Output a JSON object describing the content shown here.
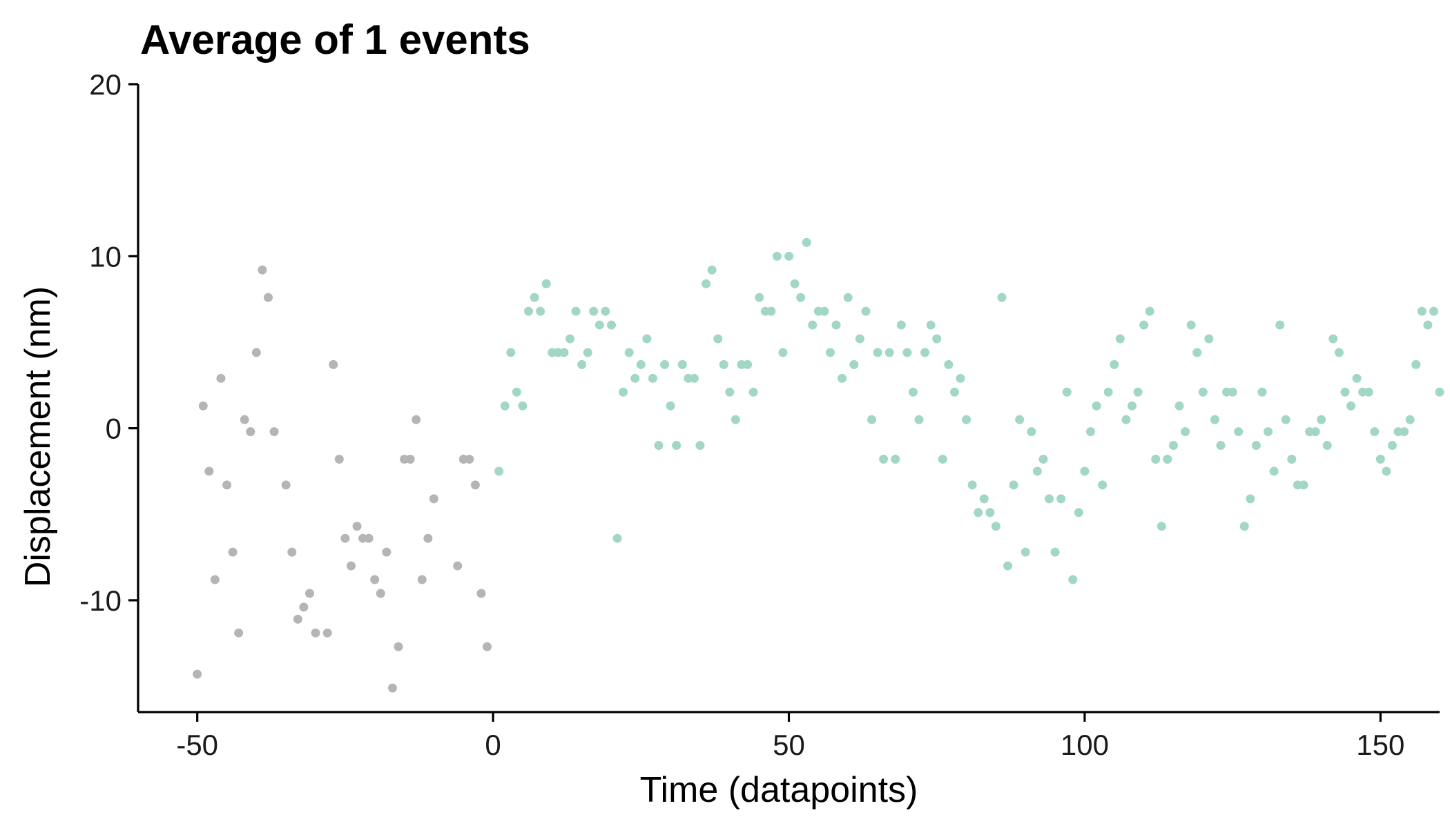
{
  "chart_data": {
    "type": "scatter",
    "title": "Average of 1 events",
    "xlabel": "Time (datapoints)",
    "ylabel": "Displacement (nm)",
    "xlim": [
      -60,
      160
    ],
    "ylim": [
      -16.5,
      20
    ],
    "x_ticks": [
      -50,
      0,
      50,
      100,
      150
    ],
    "y_ticks": [
      -10,
      0,
      10,
      20
    ],
    "x_tick_labels": [
      "-50",
      "0",
      "50",
      "100",
      "150"
    ],
    "y_tick_labels": [
      "-10",
      "0",
      "10",
      "20"
    ],
    "grid": false,
    "legend": "none",
    "series": [
      {
        "color": "#b5b5b5",
        "x": [
          -50,
          -49,
          -48,
          -47,
          -46,
          -45,
          -44,
          -43,
          -42,
          -41,
          -40,
          -39,
          -38,
          -37,
          -35,
          -34,
          -33,
          -32,
          -31,
          -30,
          -28,
          -27,
          -26,
          -25,
          -24,
          -23,
          -22,
          -21,
          -20,
          -19,
          -18,
          -17,
          -16,
          -15,
          -14,
          -13,
          -12,
          -11,
          -10,
          -6,
          -5,
          -4,
          -3,
          -2,
          -1
        ],
        "y": [
          -14.3,
          1.3,
          -2.5,
          -8.8,
          2.9,
          -3.3,
          -7.2,
          -11.9,
          0.5,
          -0.2,
          4.4,
          9.2,
          7.6,
          -0.2,
          -3.3,
          -7.2,
          -11.1,
          -10.4,
          -9.6,
          -11.9,
          -11.9,
          3.7,
          -1.8,
          -6.4,
          -8.0,
          -5.7,
          -6.4,
          -6.4,
          -8.8,
          -9.6,
          -7.2,
          -15.1,
          -12.7,
          -1.8,
          -1.8,
          0.5,
          -8.8,
          -6.4,
          -4.1,
          -8.0,
          -1.8,
          -1.8,
          -3.3,
          -9.6,
          -12.7
        ]
      },
      {
        "color": "#a2d7c3",
        "x": [
          1,
          2,
          3,
          4,
          5,
          6,
          7,
          8,
          9,
          10,
          11,
          12,
          13,
          14,
          15,
          16,
          17,
          18,
          19,
          20,
          21,
          22,
          23,
          24,
          25,
          26,
          27,
          28,
          29,
          30,
          31,
          32,
          33,
          34,
          35,
          36,
          37,
          38,
          39,
          40,
          41,
          42,
          43,
          44,
          45,
          46,
          47,
          48,
          49,
          50,
          51,
          52,
          53,
          54,
          55,
          56,
          57,
          58,
          59,
          60,
          61,
          62,
          63,
          64,
          65,
          66,
          67,
          68,
          69,
          70,
          71,
          72,
          73,
          74,
          75,
          76,
          77,
          78,
          79,
          80,
          81,
          82,
          83,
          84,
          85,
          86,
          87,
          88,
          89,
          90,
          91,
          92,
          93,
          94,
          95,
          96,
          97,
          98,
          99,
          100,
          101,
          102,
          103,
          104,
          105,
          106,
          107,
          108,
          109,
          110,
          111,
          112,
          113,
          114,
          115,
          116,
          117,
          118,
          119,
          120,
          121,
          122,
          123,
          124,
          125,
          126,
          127,
          128,
          129,
          130,
          131,
          132,
          133,
          134,
          135,
          136,
          137,
          138,
          139,
          140,
          141,
          142,
          143,
          144,
          145,
          146,
          147,
          148,
          149,
          150,
          151,
          152,
          153,
          154,
          155,
          156,
          157,
          158,
          159,
          160
        ],
        "y": [
          -2.5,
          1.3,
          4.4,
          2.1,
          1.3,
          6.8,
          7.6,
          6.8,
          8.4,
          4.4,
          4.4,
          4.4,
          5.2,
          6.8,
          3.7,
          4.4,
          6.8,
          6.0,
          6.8,
          6.0,
          -6.4,
          2.1,
          4.4,
          2.9,
          3.7,
          5.2,
          2.9,
          -1.0,
          3.7,
          1.3,
          -1.0,
          3.7,
          2.9,
          2.9,
          -1.0,
          8.4,
          9.2,
          5.2,
          3.7,
          2.1,
          0.5,
          3.7,
          3.7,
          2.1,
          7.6,
          6.8,
          6.8,
          10.0,
          4.4,
          10.0,
          8.4,
          7.6,
          10.8,
          6.0,
          6.8,
          6.8,
          4.4,
          6.0,
          2.9,
          7.6,
          3.7,
          5.2,
          6.8,
          0.5,
          4.4,
          -1.8,
          4.4,
          -1.8,
          6.0,
          4.4,
          2.1,
          0.5,
          4.4,
          6.0,
          5.2,
          -1.8,
          3.7,
          2.1,
          2.9,
          0.5,
          -3.3,
          -4.9,
          -4.1,
          -4.9,
          -5.7,
          7.6,
          -8.0,
          -3.3,
          0.5,
          -7.2,
          -0.2,
          -2.5,
          -1.8,
          -4.1,
          -7.2,
          -4.1,
          2.1,
          -8.8,
          -4.9,
          -2.5,
          -0.2,
          1.3,
          -3.3,
          2.1,
          3.7,
          5.2,
          0.5,
          1.3,
          2.1,
          6.0,
          6.8,
          -1.8,
          -5.7,
          -1.8,
          -1.0,
          1.3,
          -0.2,
          6.0,
          4.4,
          2.1,
          5.2,
          0.5,
          -1.0,
          2.1,
          2.1,
          -0.2,
          -5.7,
          -4.1,
          -1.0,
          2.1,
          -0.2,
          -2.5,
          6.0,
          0.5,
          -1.8,
          -3.3,
          -3.3,
          -0.2,
          -0.2,
          0.5,
          -1.0,
          5.2,
          4.4,
          2.1,
          1.3,
          2.9,
          2.1,
          2.1,
          -0.2,
          -1.8,
          -2.5,
          -1.0,
          -0.2,
          -0.2,
          0.5,
          3.7,
          6.8,
          6.0,
          6.8,
          2.1
        ]
      }
    ]
  }
}
